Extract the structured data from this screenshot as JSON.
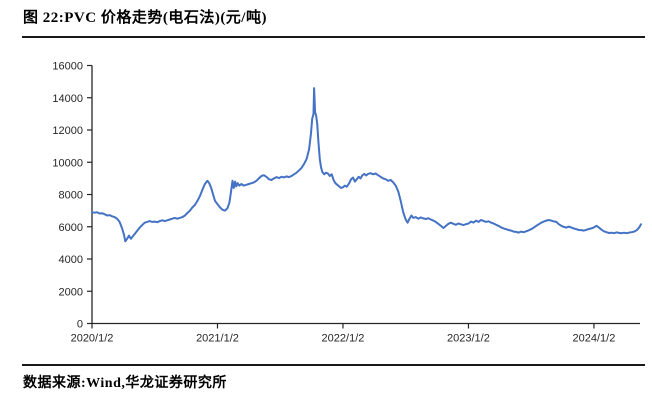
{
  "header": {
    "title": "图 22:PVC 价格走势(电石法)(元/吨)"
  },
  "footer": {
    "source": "数据来源:Wind,华龙证券研究所"
  },
  "colors": {
    "line": "#4472C4",
    "axis": "#262626",
    "divider": "#1a1a1a",
    "background": "#ffffff"
  },
  "chart_data": {
    "type": "line",
    "title": "图 22:PVC 价格走势(电石法)(元/吨)",
    "unit": "元/吨",
    "grid": false,
    "legend": "none",
    "x_axis": {
      "tick_labels": [
        "2020/1/2",
        "2021/1/2",
        "2022/1/2",
        "2023/1/2",
        "2024/1/2"
      ],
      "tick_positions": [
        0,
        1,
        2,
        3,
        4
      ],
      "range": [
        0,
        4.42
      ]
    },
    "y_axis": {
      "tick_labels": [
        "0",
        "2000",
        "4000",
        "6000",
        "8000",
        "10000",
        "12000",
        "14000",
        "16000"
      ],
      "tick_values": [
        0,
        2000,
        4000,
        6000,
        8000,
        10000,
        12000,
        14000,
        16000
      ],
      "range": [
        0,
        16000
      ]
    },
    "series": [
      {
        "color": "#4472C4",
        "points": [
          [
            0.0,
            6900
          ],
          [
            0.02,
            6870
          ],
          [
            0.04,
            6900
          ],
          [
            0.06,
            6820
          ],
          [
            0.08,
            6840
          ],
          [
            0.1,
            6780
          ],
          [
            0.12,
            6700
          ],
          [
            0.14,
            6720
          ],
          [
            0.16,
            6650
          ],
          [
            0.18,
            6600
          ],
          [
            0.2,
            6500
          ],
          [
            0.22,
            6300
          ],
          [
            0.24,
            5900
          ],
          [
            0.255,
            5500
          ],
          [
            0.265,
            5100
          ],
          [
            0.28,
            5250
          ],
          [
            0.295,
            5450
          ],
          [
            0.31,
            5250
          ],
          [
            0.325,
            5400
          ],
          [
            0.34,
            5550
          ],
          [
            0.36,
            5750
          ],
          [
            0.38,
            5950
          ],
          [
            0.4,
            6100
          ],
          [
            0.42,
            6250
          ],
          [
            0.44,
            6300
          ],
          [
            0.46,
            6350
          ],
          [
            0.48,
            6300
          ],
          [
            0.5,
            6320
          ],
          [
            0.52,
            6280
          ],
          [
            0.54,
            6350
          ],
          [
            0.56,
            6400
          ],
          [
            0.58,
            6350
          ],
          [
            0.6,
            6400
          ],
          [
            0.62,
            6450
          ],
          [
            0.64,
            6500
          ],
          [
            0.66,
            6550
          ],
          [
            0.68,
            6500
          ],
          [
            0.7,
            6550
          ],
          [
            0.72,
            6600
          ],
          [
            0.74,
            6700
          ],
          [
            0.76,
            6850
          ],
          [
            0.78,
            7000
          ],
          [
            0.8,
            7200
          ],
          [
            0.82,
            7350
          ],
          [
            0.84,
            7600
          ],
          [
            0.86,
            7900
          ],
          [
            0.88,
            8300
          ],
          [
            0.9,
            8650
          ],
          [
            0.92,
            8850
          ],
          [
            0.935,
            8700
          ],
          [
            0.95,
            8400
          ],
          [
            0.965,
            8000
          ],
          [
            0.98,
            7600
          ],
          [
            1.0,
            7400
          ],
          [
            1.02,
            7200
          ],
          [
            1.04,
            7050
          ],
          [
            1.06,
            7000
          ],
          [
            1.08,
            7150
          ],
          [
            1.095,
            7500
          ],
          [
            1.11,
            8300
          ],
          [
            1.12,
            8850
          ],
          [
            1.13,
            8400
          ],
          [
            1.14,
            8800
          ],
          [
            1.15,
            8500
          ],
          [
            1.16,
            8700
          ],
          [
            1.175,
            8550
          ],
          [
            1.19,
            8650
          ],
          [
            1.21,
            8550
          ],
          [
            1.23,
            8600
          ],
          [
            1.25,
            8650
          ],
          [
            1.27,
            8700
          ],
          [
            1.29,
            8750
          ],
          [
            1.31,
            8850
          ],
          [
            1.33,
            9000
          ],
          [
            1.35,
            9150
          ],
          [
            1.37,
            9200
          ],
          [
            1.39,
            9100
          ],
          [
            1.41,
            8950
          ],
          [
            1.43,
            8900
          ],
          [
            1.45,
            9000
          ],
          [
            1.47,
            9080
          ],
          [
            1.49,
            9020
          ],
          [
            1.51,
            9100
          ],
          [
            1.53,
            9060
          ],
          [
            1.55,
            9120
          ],
          [
            1.57,
            9080
          ],
          [
            1.59,
            9150
          ],
          [
            1.61,
            9250
          ],
          [
            1.63,
            9350
          ],
          [
            1.65,
            9500
          ],
          [
            1.67,
            9650
          ],
          [
            1.69,
            9900
          ],
          [
            1.71,
            10200
          ],
          [
            1.73,
            10800
          ],
          [
            1.745,
            11800
          ],
          [
            1.755,
            12700
          ],
          [
            1.765,
            13000
          ],
          [
            1.77,
            14600
          ],
          [
            1.778,
            13100
          ],
          [
            1.786,
            12900
          ],
          [
            1.795,
            12400
          ],
          [
            1.805,
            11200
          ],
          [
            1.815,
            10200
          ],
          [
            1.825,
            9700
          ],
          [
            1.835,
            9400
          ],
          [
            1.85,
            9250
          ],
          [
            1.865,
            9350
          ],
          [
            1.88,
            9300
          ],
          [
            1.895,
            9150
          ],
          [
            1.91,
            9250
          ],
          [
            1.925,
            8900
          ],
          [
            1.94,
            8700
          ],
          [
            1.955,
            8600
          ],
          [
            1.97,
            8500
          ],
          [
            1.985,
            8400
          ],
          [
            2.0,
            8450
          ],
          [
            2.015,
            8550
          ],
          [
            2.03,
            8480
          ],
          [
            2.05,
            8700
          ],
          [
            2.065,
            8950
          ],
          [
            2.08,
            9050
          ],
          [
            2.095,
            8800
          ],
          [
            2.11,
            8950
          ],
          [
            2.125,
            9100
          ],
          [
            2.14,
            9000
          ],
          [
            2.155,
            9200
          ],
          [
            2.17,
            9280
          ],
          [
            2.185,
            9180
          ],
          [
            2.2,
            9280
          ],
          [
            2.22,
            9320
          ],
          [
            2.24,
            9250
          ],
          [
            2.26,
            9300
          ],
          [
            2.28,
            9200
          ],
          [
            2.3,
            9100
          ],
          [
            2.32,
            9000
          ],
          [
            2.34,
            8950
          ],
          [
            2.36,
            8850
          ],
          [
            2.38,
            8900
          ],
          [
            2.4,
            8750
          ],
          [
            2.42,
            8550
          ],
          [
            2.44,
            8200
          ],
          [
            2.46,
            7600
          ],
          [
            2.48,
            6900
          ],
          [
            2.5,
            6450
          ],
          [
            2.515,
            6250
          ],
          [
            2.53,
            6500
          ],
          [
            2.545,
            6700
          ],
          [
            2.56,
            6550
          ],
          [
            2.58,
            6600
          ],
          [
            2.6,
            6500
          ],
          [
            2.62,
            6580
          ],
          [
            2.64,
            6520
          ],
          [
            2.66,
            6480
          ],
          [
            2.68,
            6530
          ],
          [
            2.7,
            6450
          ],
          [
            2.72,
            6380
          ],
          [
            2.74,
            6300
          ],
          [
            2.76,
            6180
          ],
          [
            2.78,
            6050
          ],
          [
            2.8,
            5920
          ],
          [
            2.82,
            6050
          ],
          [
            2.84,
            6180
          ],
          [
            2.86,
            6250
          ],
          [
            2.88,
            6180
          ],
          [
            2.9,
            6120
          ],
          [
            2.92,
            6200
          ],
          [
            2.94,
            6150
          ],
          [
            2.96,
            6100
          ],
          [
            2.98,
            6160
          ],
          [
            3.0,
            6200
          ],
          [
            3.02,
            6320
          ],
          [
            3.04,
            6260
          ],
          [
            3.06,
            6380
          ],
          [
            3.08,
            6300
          ],
          [
            3.1,
            6420
          ],
          [
            3.12,
            6360
          ],
          [
            3.14,
            6300
          ],
          [
            3.16,
            6340
          ],
          [
            3.18,
            6260
          ],
          [
            3.2,
            6200
          ],
          [
            3.22,
            6120
          ],
          [
            3.24,
            6050
          ],
          [
            3.26,
            5960
          ],
          [
            3.28,
            5900
          ],
          [
            3.3,
            5850
          ],
          [
            3.32,
            5800
          ],
          [
            3.34,
            5760
          ],
          [
            3.36,
            5700
          ],
          [
            3.38,
            5680
          ],
          [
            3.4,
            5640
          ],
          [
            3.42,
            5700
          ],
          [
            3.44,
            5660
          ],
          [
            3.46,
            5720
          ],
          [
            3.48,
            5780
          ],
          [
            3.5,
            5850
          ],
          [
            3.52,
            5950
          ],
          [
            3.54,
            6050
          ],
          [
            3.56,
            6150
          ],
          [
            3.58,
            6250
          ],
          [
            3.6,
            6320
          ],
          [
            3.62,
            6380
          ],
          [
            3.64,
            6420
          ],
          [
            3.66,
            6380
          ],
          [
            3.68,
            6330
          ],
          [
            3.7,
            6300
          ],
          [
            3.72,
            6160
          ],
          [
            3.74,
            6060
          ],
          [
            3.76,
            5990
          ],
          [
            3.78,
            5950
          ],
          [
            3.8,
            6010
          ],
          [
            3.82,
            5950
          ],
          [
            3.84,
            5890
          ],
          [
            3.86,
            5850
          ],
          [
            3.88,
            5800
          ],
          [
            3.9,
            5790
          ],
          [
            3.92,
            5760
          ],
          [
            3.94,
            5810
          ],
          [
            3.96,
            5860
          ],
          [
            3.98,
            5900
          ],
          [
            4.0,
            5960
          ],
          [
            4.02,
            6060
          ],
          [
            4.04,
            5950
          ],
          [
            4.06,
            5820
          ],
          [
            4.08,
            5720
          ],
          [
            4.1,
            5660
          ],
          [
            4.12,
            5610
          ],
          [
            4.14,
            5630
          ],
          [
            4.16,
            5600
          ],
          [
            4.18,
            5650
          ],
          [
            4.2,
            5620
          ],
          [
            4.22,
            5600
          ],
          [
            4.24,
            5630
          ],
          [
            4.26,
            5600
          ],
          [
            4.28,
            5640
          ],
          [
            4.3,
            5660
          ],
          [
            4.32,
            5700
          ],
          [
            4.34,
            5780
          ],
          [
            4.36,
            5950
          ],
          [
            4.375,
            6150
          ]
        ]
      }
    ]
  }
}
